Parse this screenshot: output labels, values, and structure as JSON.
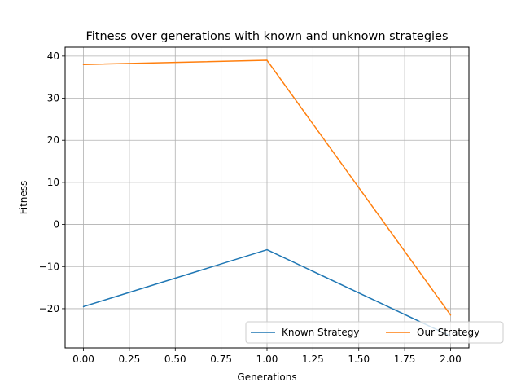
{
  "chart_data": {
    "type": "line",
    "title": "Fitness over generations with known and unknown strategies",
    "xlabel": "Generations",
    "ylabel": "Fitness",
    "x": [
      0,
      1,
      2
    ],
    "series": [
      {
        "name": "Known Strategy",
        "values": [
          -19.5,
          -6,
          -26.5
        ],
        "color": "#1f77b4"
      },
      {
        "name": "Our Strategy",
        "values": [
          38,
          39,
          -21.5
        ],
        "color": "#ff7f0e"
      }
    ],
    "xlim": [
      -0.1,
      2.1
    ],
    "ylim": [
      -29.3,
      42.1
    ],
    "xticks": [
      0,
      0.25,
      0.5,
      0.75,
      1,
      1.25,
      1.5,
      1.75,
      2
    ],
    "xtick_labels": [
      "0.00",
      "0.25",
      "0.50",
      "0.75",
      "1.00",
      "1.25",
      "1.50",
      "1.75",
      "2.00"
    ],
    "yticks": [
      -20,
      -10,
      0,
      10,
      20,
      30,
      40
    ],
    "ytick_labels": [
      "−20",
      "−10",
      "0",
      "10",
      "20",
      "30",
      "40"
    ],
    "grid": true,
    "legend": {
      "placement": "lower-right",
      "columns": 2
    }
  }
}
